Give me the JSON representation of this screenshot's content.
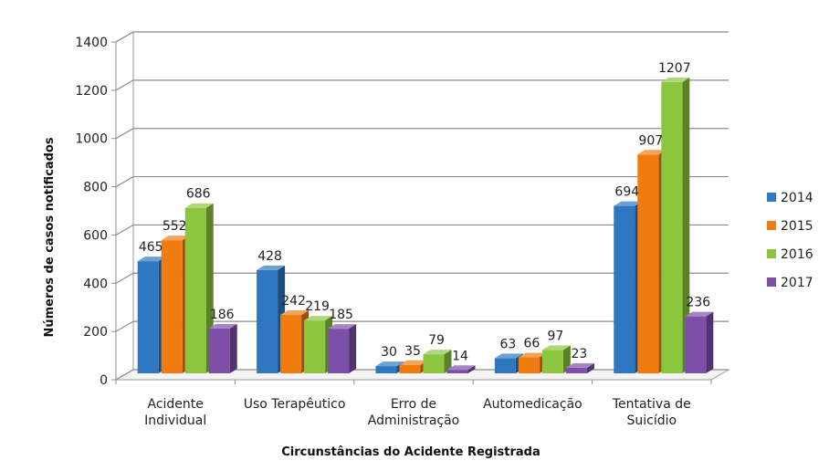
{
  "chart_data": {
    "type": "bar",
    "categories": [
      [
        "Acidente",
        "Individual"
      ],
      [
        "Uso Terapêutico"
      ],
      [
        "Erro de",
        "Administração"
      ],
      [
        "Automedicação"
      ],
      [
        "Tentativa de",
        "Suicídio"
      ]
    ],
    "series": [
      {
        "name": "2014",
        "color": "#2e78c2",
        "values": [
          465,
          428,
          30,
          63,
          694
        ]
      },
      {
        "name": "2015",
        "color": "#f07c10",
        "values": [
          552,
          242,
          35,
          66,
          907
        ]
      },
      {
        "name": "2016",
        "color": "#8cc63f",
        "values": [
          686,
          219,
          79,
          97,
          1207
        ]
      },
      {
        "name": "2017",
        "color": "#7d4fa8",
        "values": [
          186,
          185,
          14,
          23,
          236
        ]
      }
    ],
    "yticks": [
      0,
      200,
      400,
      600,
      800,
      1000,
      1200,
      1400
    ],
    "ylim": [
      0,
      1400
    ],
    "xlabel": "Circunstâncias do Acidente Registrada",
    "ylabel": "Números de casos notificados",
    "grid": true,
    "legend": "right",
    "three_d": true
  }
}
